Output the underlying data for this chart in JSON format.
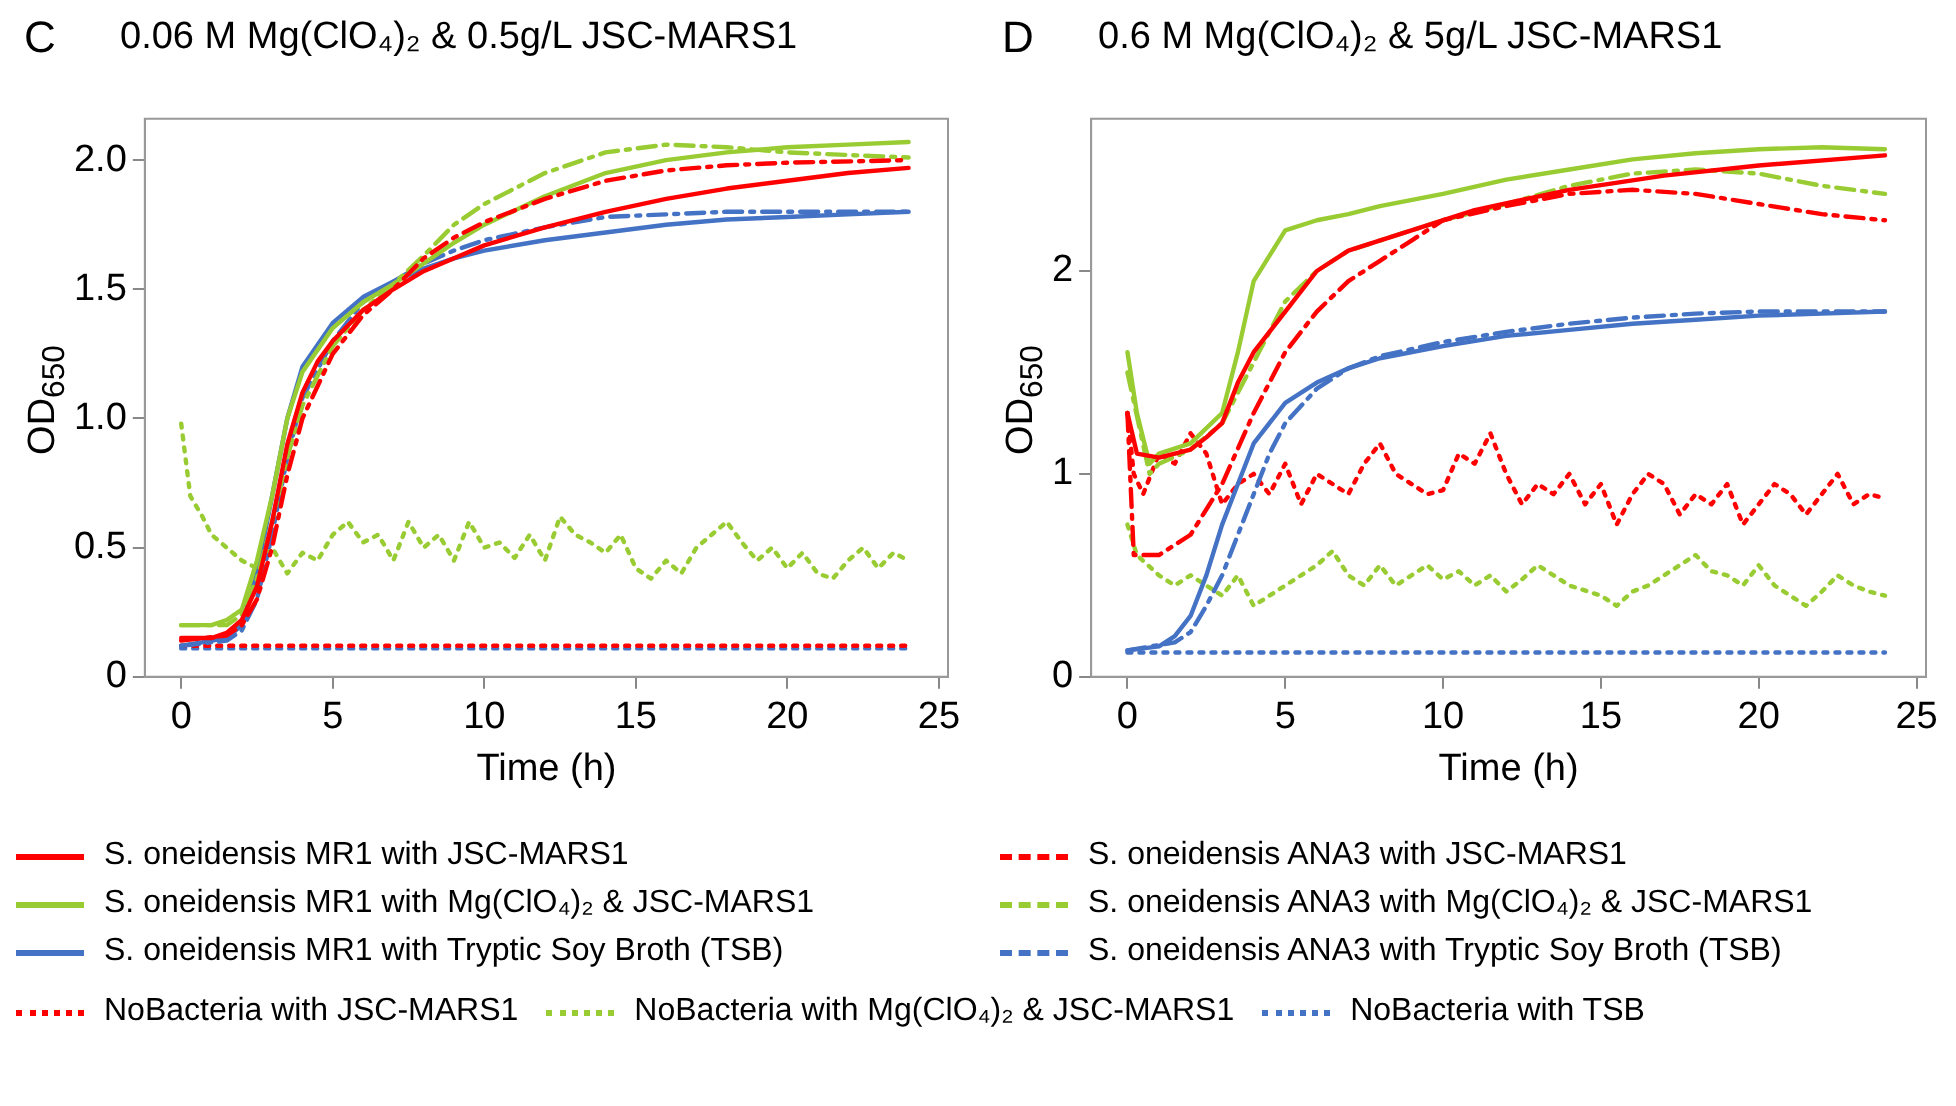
{
  "chart_data": [
    {
      "type": "line",
      "title": "0.06 M Mg(ClO₄)₂ & 0.5g/L JSC-MARS1",
      "xlabel": "Time (h)",
      "ylabel": "OD$_{650}$",
      "annotations": [
        "C"
      ],
      "xlim": [
        -1.2,
        25.3
      ],
      "ylim": [
        0,
        2.16
      ],
      "xticks": [
        0,
        5,
        10,
        15,
        20,
        25
      ],
      "yticks": [
        0,
        0.5,
        {
          "value": 1,
          "label": "1.0"
        },
        1.5,
        {
          "value": 2,
          "label": "2.0"
        }
      ],
      "grid": false,
      "legend": "bottom",
      "series": [
        {
          "name": "S. oneidensis MR1 with JSC-MARS1",
          "color": "#ff0000",
          "line_style": "solid",
          "x": [
            0,
            1,
            1.5,
            2,
            2.5,
            3,
            3.5,
            4,
            4.5,
            5,
            6,
            7,
            8,
            9,
            10,
            12,
            14,
            16,
            18,
            20,
            22,
            24
          ],
          "values": [
            0.15,
            0.15,
            0.17,
            0.22,
            0.35,
            0.6,
            0.9,
            1.1,
            1.22,
            1.3,
            1.42,
            1.5,
            1.57,
            1.62,
            1.67,
            1.74,
            1.8,
            1.85,
            1.89,
            1.92,
            1.95,
            1.97
          ]
        },
        {
          "name": "S. oneidensis ANA3 with JSC-MARS1",
          "color": "#ff0000",
          "line_style": "dashed",
          "x": [
            0,
            1.5,
            2,
            2.5,
            3,
            3.5,
            4,
            5,
            6,
            7,
            8,
            9,
            10,
            12,
            14,
            16,
            18,
            20,
            24
          ],
          "values": [
            0.14,
            0.16,
            0.2,
            0.3,
            0.5,
            0.78,
            1.0,
            1.25,
            1.4,
            1.5,
            1.62,
            1.7,
            1.76,
            1.85,
            1.92,
            1.96,
            1.98,
            1.99,
            2.0
          ]
        },
        {
          "name": "S. oneidensis MR1 with Mg(ClO₄)₂ & JSC-MARS1",
          "color": "#99cc33",
          "line_style": "solid",
          "x": [
            0,
            1,
            1.5,
            2,
            2.5,
            3,
            3.5,
            4,
            5,
            6,
            7,
            8,
            9,
            10,
            12,
            14,
            16,
            18,
            20,
            22,
            24
          ],
          "values": [
            0.2,
            0.2,
            0.22,
            0.26,
            0.45,
            0.7,
            1.0,
            1.18,
            1.35,
            1.45,
            1.52,
            1.6,
            1.68,
            1.75,
            1.86,
            1.95,
            2.0,
            2.03,
            2.05,
            2.06,
            2.07
          ]
        },
        {
          "name": "S. oneidensis ANA3 with Mg(ClO₄)₂ & JSC-MARS1",
          "color": "#99cc33",
          "line_style": "dashed",
          "x": [
            0,
            1.5,
            2,
            2.5,
            3,
            3.5,
            4,
            5,
            6,
            7,
            8,
            9,
            10,
            12,
            14,
            16,
            18,
            20,
            22,
            24
          ],
          "values": [
            0.2,
            0.2,
            0.24,
            0.38,
            0.6,
            0.85,
            1.05,
            1.28,
            1.42,
            1.52,
            1.63,
            1.75,
            1.83,
            1.95,
            2.03,
            2.06,
            2.05,
            2.03,
            2.02,
            2.01
          ]
        },
        {
          "name": "S. oneidensis MR1 with Tryptic Soy Broth (TSB)",
          "color": "#4472c4",
          "line_style": "solid",
          "x": [
            0,
            1.5,
            2,
            2.5,
            3,
            3.5,
            4,
            5,
            6,
            7,
            8,
            9,
            10,
            12,
            14,
            16,
            18,
            20,
            22,
            24
          ],
          "values": [
            0.12,
            0.15,
            0.2,
            0.4,
            0.7,
            1.0,
            1.2,
            1.37,
            1.47,
            1.53,
            1.58,
            1.62,
            1.65,
            1.69,
            1.72,
            1.75,
            1.77,
            1.78,
            1.79,
            1.8
          ]
        },
        {
          "name": "S. oneidensis ANA3 with Tryptic Soy Broth (TSB)",
          "color": "#4472c4",
          "line_style": "dashed",
          "x": [
            0,
            1.5,
            2,
            2.5,
            3,
            3.5,
            4,
            5,
            6,
            7,
            8,
            9,
            10,
            12,
            14,
            16,
            18,
            24
          ],
          "values": [
            0.12,
            0.14,
            0.18,
            0.3,
            0.55,
            0.85,
            1.08,
            1.3,
            1.45,
            1.53,
            1.6,
            1.65,
            1.69,
            1.74,
            1.78,
            1.79,
            1.8,
            1.8
          ]
        },
        {
          "name": "NoBacteria with JSC-MARS1",
          "color": "#ff0000",
          "line_style": "dotted",
          "x": [
            0,
            4,
            8,
            12,
            16,
            20,
            24
          ],
          "values": [
            0.12,
            0.12,
            0.12,
            0.12,
            0.12,
            0.12,
            0.12
          ]
        },
        {
          "name": "NoBacteria with Mg(ClO₄)₂ & JSC-MARS1",
          "color": "#99cc33",
          "line_style": "dotted",
          "x": [
            0,
            0.3,
            0.7,
            1,
            1.5,
            2,
            2.5,
            3,
            3.5,
            4,
            4.5,
            5,
            5.5,
            6,
            6.5,
            7,
            7.5,
            8,
            8.5,
            9,
            9.5,
            10,
            10.5,
            11,
            11.5,
            12,
            12.5,
            13,
            13.5,
            14,
            14.5,
            15,
            15.5,
            16,
            16.5,
            17,
            17.5,
            18,
            18.5,
            19,
            19.5,
            20,
            20.5,
            21,
            21.5,
            22,
            22.5,
            23,
            23.5,
            24
          ],
          "values": [
            0.98,
            0.7,
            0.62,
            0.55,
            0.5,
            0.45,
            0.42,
            0.5,
            0.4,
            0.48,
            0.45,
            0.55,
            0.6,
            0.52,
            0.55,
            0.45,
            0.6,
            0.5,
            0.55,
            0.45,
            0.6,
            0.5,
            0.52,
            0.46,
            0.55,
            0.45,
            0.62,
            0.55,
            0.52,
            0.48,
            0.55,
            0.42,
            0.38,
            0.45,
            0.4,
            0.5,
            0.55,
            0.6,
            0.52,
            0.45,
            0.5,
            0.42,
            0.48,
            0.4,
            0.38,
            0.45,
            0.5,
            0.42,
            0.48,
            0.45
          ]
        },
        {
          "name": "NoBacteria with TSB",
          "color": "#4472c4",
          "line_style": "dotted",
          "x": [
            0,
            4,
            8,
            12,
            16,
            20,
            24
          ],
          "values": [
            0.11,
            0.11,
            0.11,
            0.11,
            0.11,
            0.11,
            0.11
          ]
        }
      ]
    },
    {
      "type": "line",
      "title": "0.6 M Mg(ClO₄)₂ & 5g/L JSC-MARS1",
      "xlabel": "Time (h)",
      "ylabel": "OD$_{650}$",
      "annotations": [
        "D"
      ],
      "xlim": [
        -1.15,
        25.3
      ],
      "ylim": [
        0,
        2.75
      ],
      "xticks": [
        0,
        5,
        10,
        15,
        20,
        25
      ],
      "yticks": [
        0,
        1,
        2
      ],
      "grid": false,
      "legend": "bottom",
      "series": [
        {
          "color": "#ff0000",
          "line_style": "solid",
          "x": [
            0,
            0.3,
            1,
            2,
            2.5,
            3,
            3.5,
            4,
            5,
            6,
            7,
            9,
            11,
            14,
            17,
            20,
            24
          ],
          "values": [
            1.3,
            1.1,
            1.08,
            1.12,
            1.18,
            1.25,
            1.45,
            1.6,
            1.8,
            2.0,
            2.1,
            2.2,
            2.3,
            2.4,
            2.47,
            2.52,
            2.57
          ]
        },
        {
          "color": "#ff0000",
          "line_style": "dashed",
          "x": [
            0,
            0.2,
            1,
            2,
            3,
            4,
            5,
            6,
            7,
            8,
            9,
            10,
            12,
            14,
            16,
            18,
            20,
            22,
            24
          ],
          "values": [
            1.3,
            0.6,
            0.6,
            0.7,
            0.95,
            1.3,
            1.6,
            1.8,
            1.95,
            2.05,
            2.15,
            2.25,
            2.32,
            2.38,
            2.4,
            2.38,
            2.33,
            2.28,
            2.25
          ]
        },
        {
          "color": "#99cc33",
          "line_style": "solid",
          "x": [
            0,
            0.3,
            0.7,
            1,
            2,
            3,
            3.5,
            4,
            5,
            6,
            7,
            8,
            10,
            12,
            14,
            16,
            18,
            20,
            22,
            24
          ],
          "values": [
            1.6,
            1.3,
            1.05,
            1.1,
            1.15,
            1.3,
            1.6,
            1.95,
            2.2,
            2.25,
            2.28,
            2.32,
            2.38,
            2.45,
            2.5,
            2.55,
            2.58,
            2.6,
            2.61,
            2.6
          ]
        },
        {
          "color": "#99cc33",
          "line_style": "dashed",
          "x": [
            0,
            0.7,
            1,
            2,
            3,
            4,
            5,
            6,
            7,
            8,
            10,
            12,
            14,
            16,
            18,
            20,
            22,
            24
          ],
          "values": [
            1.5,
            1.0,
            1.05,
            1.12,
            1.25,
            1.55,
            1.85,
            2.0,
            2.1,
            2.15,
            2.25,
            2.33,
            2.42,
            2.48,
            2.5,
            2.48,
            2.42,
            2.38
          ]
        },
        {
          "color": "#4472c4",
          "line_style": "solid",
          "x": [
            0,
            1,
            1.5,
            2,
            2.5,
            3,
            3.5,
            4,
            5,
            6,
            7,
            8,
            10,
            12,
            14,
            16,
            18,
            20,
            22,
            24
          ],
          "values": [
            0.13,
            0.15,
            0.2,
            0.3,
            0.5,
            0.75,
            0.95,
            1.15,
            1.35,
            1.45,
            1.52,
            1.57,
            1.63,
            1.68,
            1.71,
            1.74,
            1.76,
            1.78,
            1.79,
            1.8
          ]
        },
        {
          "color": "#4472c4",
          "line_style": "dashed",
          "x": [
            0,
            1.5,
            2,
            2.5,
            3,
            3.5,
            4,
            4.5,
            5,
            6,
            7,
            8,
            10,
            12,
            14,
            16,
            18,
            20,
            24
          ],
          "values": [
            0.13,
            0.17,
            0.22,
            0.35,
            0.5,
            0.7,
            0.9,
            1.1,
            1.25,
            1.42,
            1.52,
            1.58,
            1.65,
            1.7,
            1.74,
            1.77,
            1.79,
            1.8,
            1.8
          ]
        },
        {
          "color": "#ff0000",
          "line_style": "dotted",
          "x": [
            0,
            0.2,
            0.5,
            1,
            1.5,
            2,
            2.5,
            3,
            3.5,
            4,
            4.5,
            5,
            5.5,
            6,
            6.5,
            7,
            7.5,
            8,
            8.5,
            9,
            9.5,
            10,
            10.5,
            11,
            11.5,
            12,
            12.5,
            13,
            13.5,
            14,
            14.5,
            15,
            15.5,
            16,
            16.5,
            17,
            17.5,
            18,
            18.5,
            19,
            19.5,
            20,
            20.5,
            21,
            21.5,
            22,
            22.5,
            23,
            23.5,
            24
          ],
          "values": [
            1.3,
            1.0,
            0.9,
            1.1,
            1.05,
            1.2,
            1.1,
            0.85,
            0.95,
            1.0,
            0.9,
            1.05,
            0.85,
            1.0,
            0.95,
            0.9,
            1.05,
            1.15,
            1.0,
            0.95,
            0.9,
            0.92,
            1.1,
            1.05,
            1.2,
            1.0,
            0.85,
            0.95,
            0.9,
            1.0,
            0.85,
            0.95,
            0.75,
            0.9,
            1.0,
            0.95,
            0.8,
            0.9,
            0.85,
            0.95,
            0.75,
            0.85,
            0.95,
            0.9,
            0.8,
            0.9,
            1.0,
            0.85,
            0.9,
            0.88
          ]
        },
        {
          "color": "#99cc33",
          "line_style": "dotted",
          "x": [
            0,
            0.3,
            1,
            1.5,
            2,
            2.5,
            3,
            3.5,
            4,
            5,
            5.5,
            6,
            6.5,
            7,
            7.5,
            8,
            8.5,
            9,
            9.5,
            10,
            10.5,
            11,
            11.5,
            12,
            12.5,
            13,
            13.5,
            14,
            15,
            15.5,
            16,
            16.5,
            17,
            17.5,
            18,
            18.5,
            19,
            19.5,
            20,
            20.5,
            21,
            21.5,
            22,
            22.5,
            23,
            23.5,
            24
          ],
          "values": [
            0.75,
            0.6,
            0.5,
            0.45,
            0.5,
            0.45,
            0.4,
            0.5,
            0.35,
            0.45,
            0.5,
            0.55,
            0.62,
            0.5,
            0.45,
            0.55,
            0.45,
            0.5,
            0.55,
            0.48,
            0.52,
            0.45,
            0.5,
            0.42,
            0.48,
            0.55,
            0.5,
            0.45,
            0.4,
            0.35,
            0.42,
            0.45,
            0.5,
            0.55,
            0.6,
            0.52,
            0.5,
            0.45,
            0.55,
            0.45,
            0.4,
            0.35,
            0.42,
            0.5,
            0.45,
            0.42,
            0.4
          ]
        },
        {
          "color": "#4472c4",
          "line_style": "dotted",
          "x": [
            0,
            4,
            8,
            12,
            16,
            20,
            24
          ],
          "values": [
            0.12,
            0.12,
            0.12,
            0.12,
            0.12,
            0.12,
            0.12
          ]
        }
      ]
    }
  ]
}
